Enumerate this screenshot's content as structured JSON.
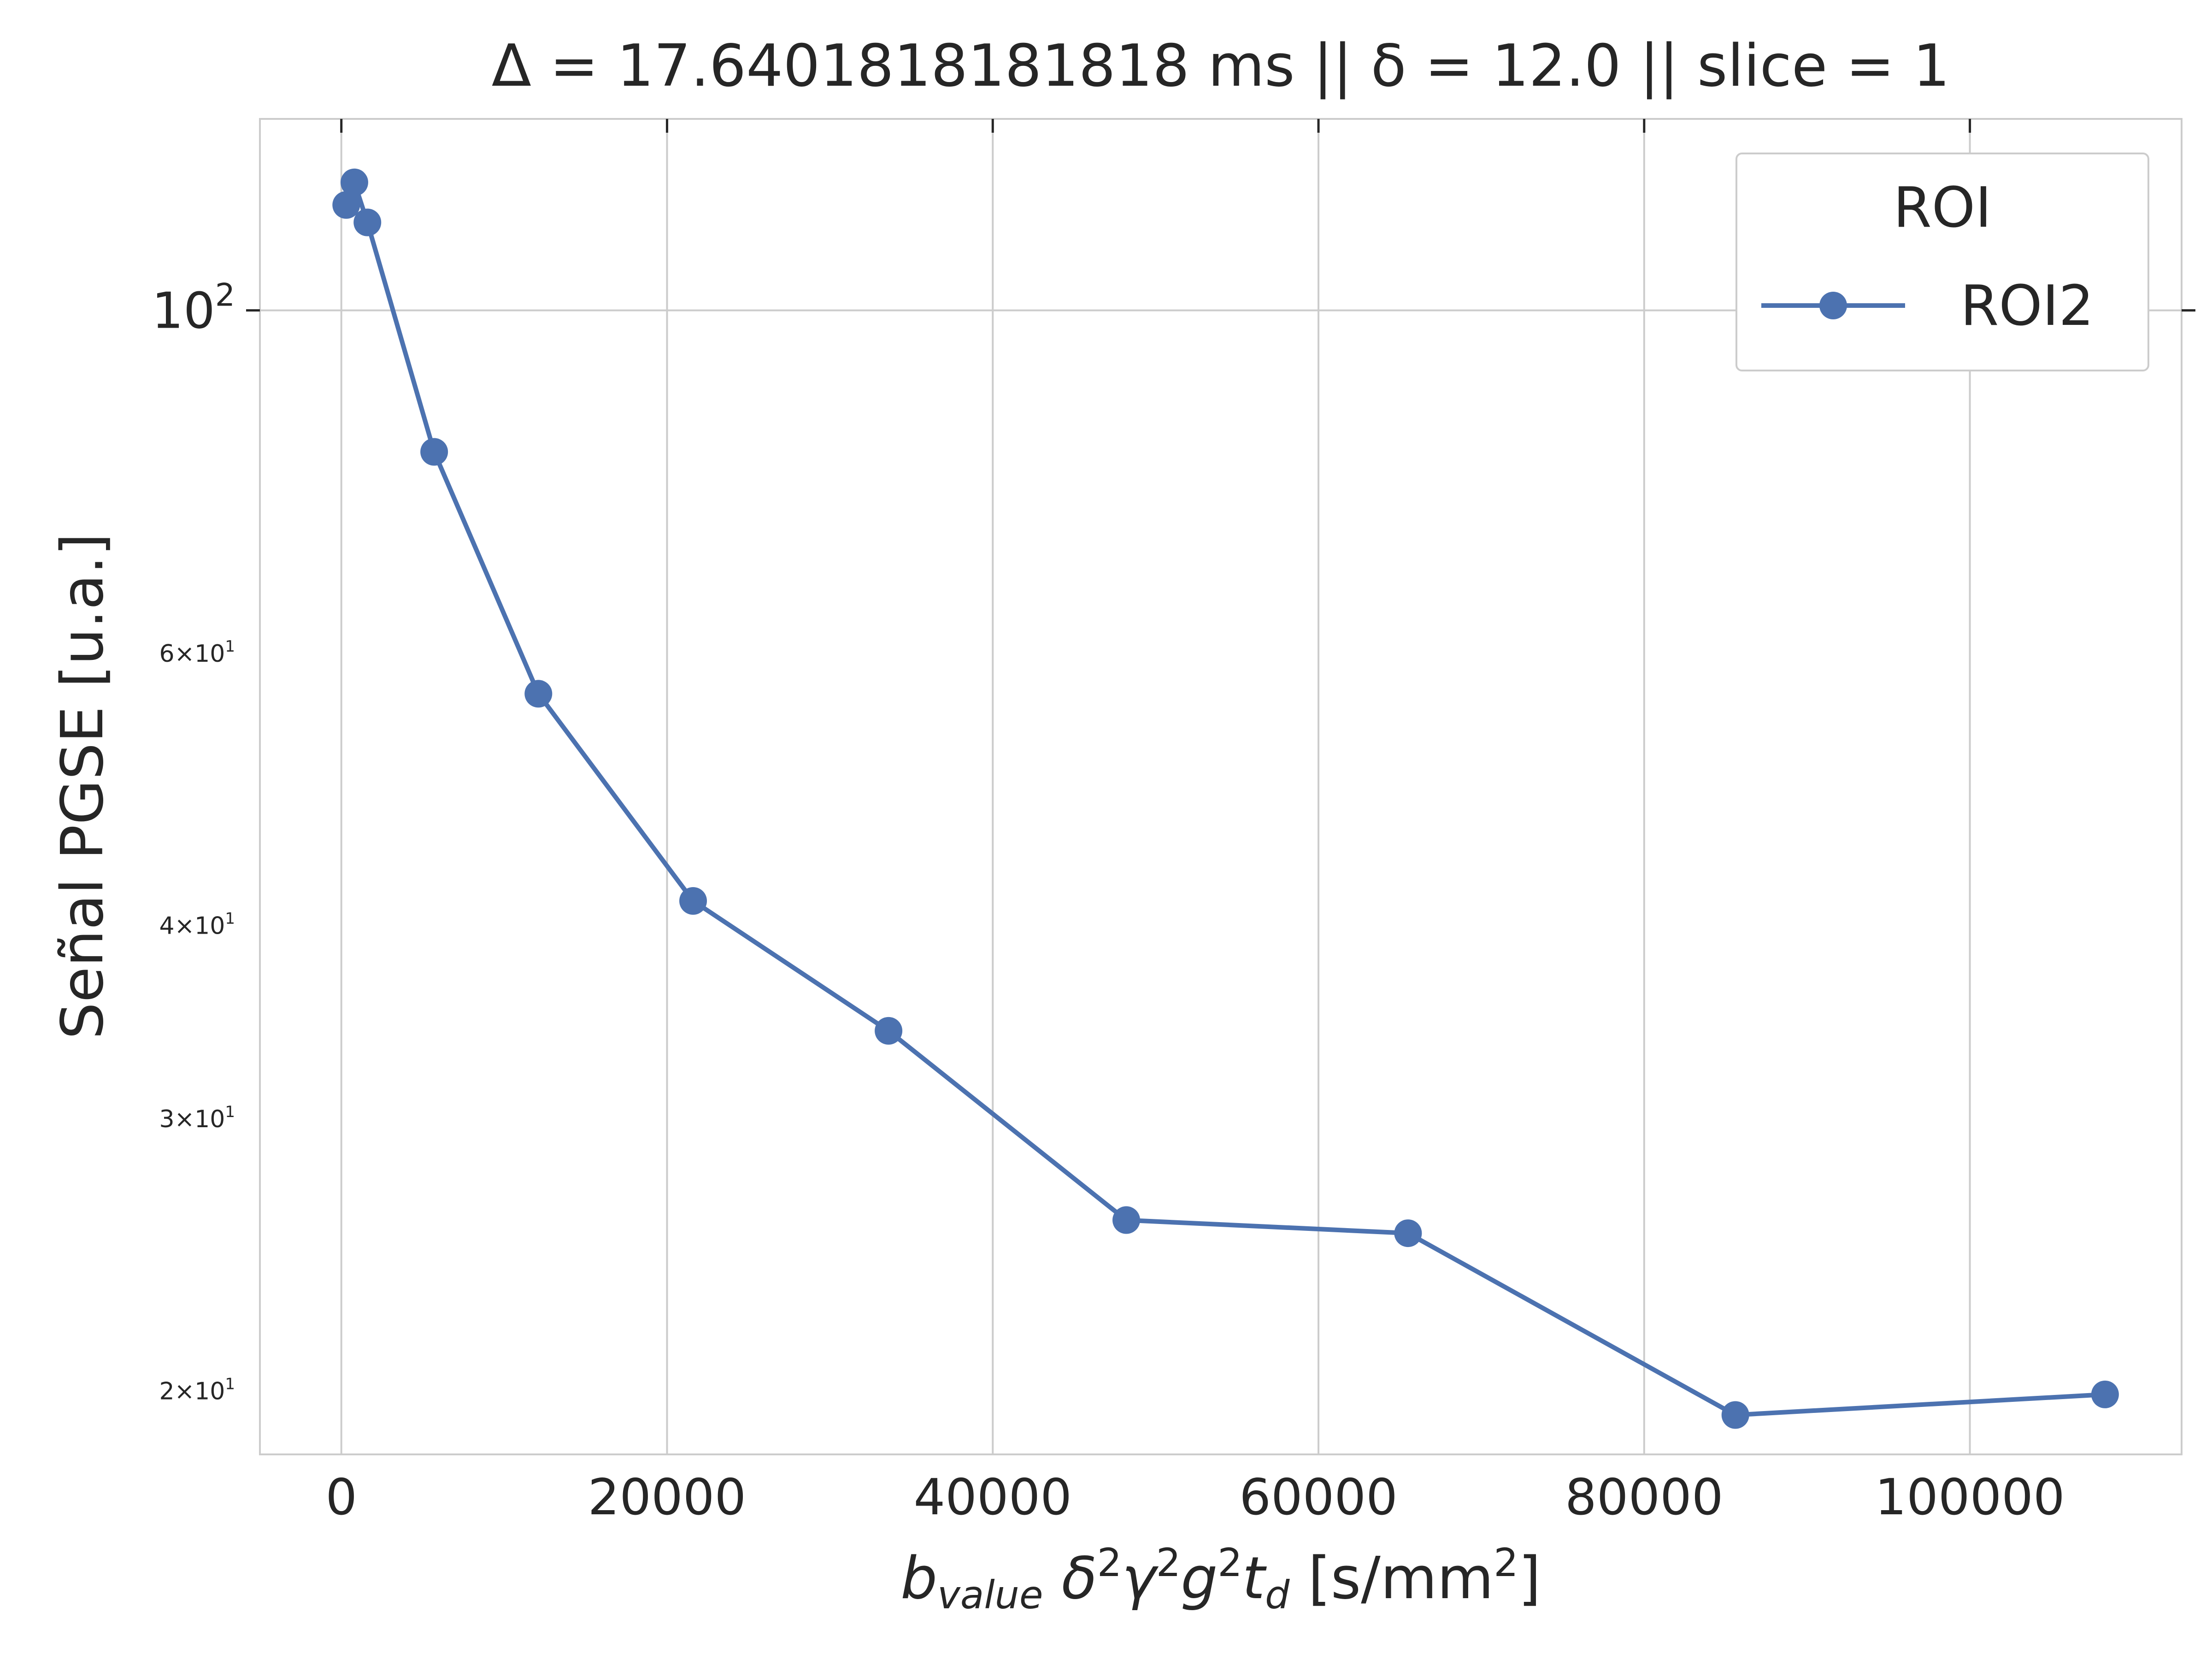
{
  "chart_data": {
    "type": "line",
    "title": "Δ = 17.6401818181818 ms  ||  δ = 12.0 || slice = 1",
    "xlabel": "b_value δ²γ²g²t_d [s/mm²]",
    "ylabel": "Señal PGSE [u.a.]",
    "xscale": "linear",
    "yscale": "log",
    "xlim": [
      -5000,
      113000
    ],
    "ylim": [
      18.2,
      133
    ],
    "grid": true,
    "legend": {
      "title": "ROI",
      "position": "top-right"
    },
    "x_ticks": [
      {
        "value": 0,
        "label": "0"
      },
      {
        "value": 20000,
        "label": "20000"
      },
      {
        "value": 40000,
        "label": "40000"
      },
      {
        "value": 60000,
        "label": "60000"
      },
      {
        "value": 80000,
        "label": "80000"
      },
      {
        "value": 100000,
        "label": "100000"
      }
    ],
    "y_ticks_major": [
      {
        "value": 100,
        "base": "10",
        "exp": "2"
      }
    ],
    "y_ticks_minor": [
      {
        "value": 60,
        "mant": "6",
        "base": "10",
        "exp": "1"
      },
      {
        "value": 40,
        "mant": "4",
        "base": "10",
        "exp": "1"
      },
      {
        "value": 30,
        "mant": "3",
        "base": "10",
        "exp": "1"
      },
      {
        "value": 20,
        "mant": "2",
        "base": "10",
        "exp": "1"
      }
    ],
    "series": [
      {
        "name": "ROI2",
        "color": "#4c72b0",
        "points": [
          {
            "x": 300,
            "y": 117
          },
          {
            "x": 800,
            "y": 121
          },
          {
            "x": 1600,
            "y": 114
          },
          {
            "x": 5700,
            "y": 81
          },
          {
            "x": 12100,
            "y": 56.5
          },
          {
            "x": 21600,
            "y": 41.5
          },
          {
            "x": 33600,
            "y": 34.2
          },
          {
            "x": 48200,
            "y": 25.8
          },
          {
            "x": 65500,
            "y": 25.3
          },
          {
            "x": 85600,
            "y": 19.3
          },
          {
            "x": 108300,
            "y": 19.9
          }
        ]
      }
    ]
  }
}
